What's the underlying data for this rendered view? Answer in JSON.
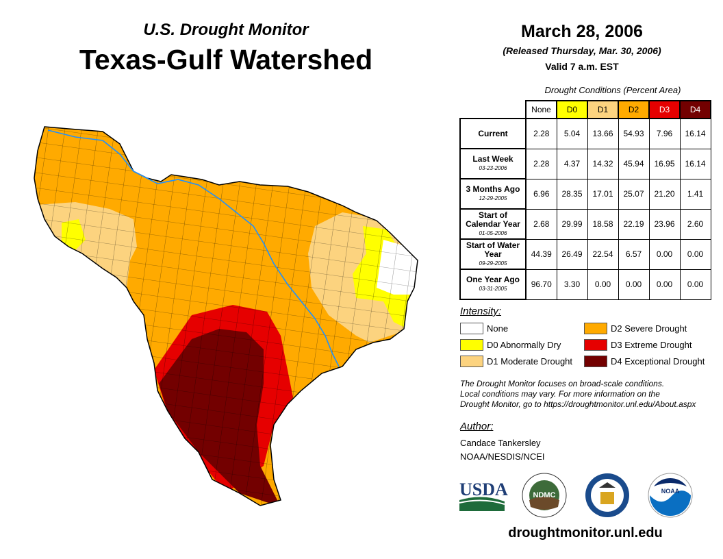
{
  "header": {
    "subtitle": "U.S. Drought Monitor",
    "title": "Texas-Gulf Watershed",
    "date": "March 28, 2006",
    "released": "(Released Thursday, Mar. 30, 2006)",
    "valid": "Valid 7 a.m. EST"
  },
  "table": {
    "caption": "Drought Conditions (Percent Area)",
    "columns": [
      {
        "label": "None",
        "color": "#ffffff",
        "text": "#000"
      },
      {
        "label": "D0",
        "color": "#ffff00",
        "text": "#000"
      },
      {
        "label": "D1",
        "color": "#fcd37f",
        "text": "#000"
      },
      {
        "label": "D2",
        "color": "#ffaa00",
        "text": "#000"
      },
      {
        "label": "D3",
        "color": "#e60000",
        "text": "#fff"
      },
      {
        "label": "D4",
        "color": "#730000",
        "text": "#fff"
      }
    ],
    "rows": [
      {
        "label": "Current",
        "date": "",
        "values": [
          "2.28",
          "5.04",
          "13.66",
          "54.93",
          "7.96",
          "16.14"
        ]
      },
      {
        "label": "Last Week",
        "date": "03-23-2006",
        "values": [
          "2.28",
          "4.37",
          "14.32",
          "45.94",
          "16.95",
          "16.14"
        ]
      },
      {
        "label": "3 Months Ago",
        "date": "12-29-2005",
        "values": [
          "6.96",
          "28.35",
          "17.01",
          "25.07",
          "21.20",
          "1.41"
        ]
      },
      {
        "label": "Start of Calendar Year",
        "date": "01-05-2006",
        "values": [
          "2.68",
          "29.99",
          "18.58",
          "22.19",
          "23.96",
          "2.60"
        ]
      },
      {
        "label": "Start of Water Year",
        "date": "09-29-2005",
        "values": [
          "44.39",
          "26.49",
          "22.54",
          "6.57",
          "0.00",
          "0.00"
        ]
      },
      {
        "label": "One Year Ago",
        "date": "03-31-2005",
        "values": [
          "96.70",
          "3.30",
          "0.00",
          "0.00",
          "0.00",
          "0.00"
        ]
      }
    ]
  },
  "legend": {
    "title": "Intensity:",
    "items": [
      {
        "label": "None",
        "color": "#ffffff"
      },
      {
        "label": "D0 Abnormally Dry",
        "color": "#ffff00"
      },
      {
        "label": "D1 Moderate Drought",
        "color": "#fcd37f"
      },
      {
        "label": "D2 Severe Drought",
        "color": "#ffaa00"
      },
      {
        "label": "D3 Extreme Drought",
        "color": "#e60000"
      },
      {
        "label": "D4 Exceptional Drought",
        "color": "#730000"
      }
    ]
  },
  "note": [
    "The Drought Monitor focuses on broad-scale conditions.",
    "Local conditions may vary. For more information on the",
    "Drought Monitor, go to https://droughtmonitor.unl.edu/About.aspx"
  ],
  "author": {
    "title": "Author:",
    "name": "Candace Tankersley",
    "org": "NOAA/NESDIS/NCEI"
  },
  "logos": {
    "usda": "USDA",
    "ndmc": "NDMC",
    "noaa": "NOAA"
  },
  "url": "droughtmonitor.unl.edu"
}
